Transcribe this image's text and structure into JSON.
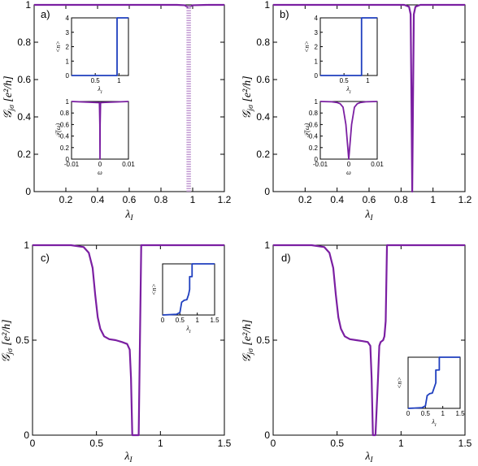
{
  "chart_data": [
    {
      "panel": "a)",
      "type": "line",
      "xlabel": "λI",
      "ylabel": "𝒢jσ [e²/h]",
      "xlim": [
        0,
        1.2
      ],
      "ylim": [
        0,
        1
      ],
      "xticks": [
        "0.2",
        "0.4",
        "0.6",
        "0.8",
        "1",
        "1.2"
      ],
      "yticks": [
        "0",
        "0.2",
        "0.4",
        "0.6",
        "0.8",
        "1"
      ],
      "series": [
        {
          "color": "#7b1fa2",
          "style": "solid",
          "x": [
            0,
            0.9,
            0.95,
            0.965,
            0.972
          ],
          "y": [
            1,
            1,
            0.998,
            0.99,
            0.985
          ]
        },
        {
          "color": "#7b1fa2",
          "style": "solid",
          "x": [
            0.978,
            1.0,
            1.1,
            1.2
          ],
          "y": [
            0.99,
            0.998,
            1,
            1
          ]
        },
        {
          "color": "#c39bd3",
          "style": "dotted",
          "x": [
            0.975,
            0.975
          ],
          "y": [
            0,
            1
          ]
        }
      ],
      "insets": [
        {
          "type": "line",
          "ylabel": "<n>",
          "xlabel": "λI",
          "xlim": [
            0,
            1.2
          ],
          "ylim": [
            0,
            4
          ],
          "xticks": [
            "0.5",
            "1"
          ],
          "yticks": [
            "0",
            "1",
            "2",
            "3",
            "4"
          ],
          "series": [
            {
              "color": "#1f3fbf",
              "x": [
                0,
                0.96,
                0.96,
                1.2
              ],
              "y": [
                0,
                0,
                4,
                4
              ]
            }
          ]
        },
        {
          "type": "line",
          "ylabel": "𝒯(ω)",
          "xlabel": "ω",
          "xlim": [
            -0.01,
            0.01
          ],
          "ylim": [
            0,
            1
          ],
          "xticks": [
            "-0.01",
            "0",
            "0.01"
          ],
          "yticks": [
            "0",
            "0.2",
            "0.4",
            "0.6",
            "0.8",
            "1"
          ],
          "series": [
            {
              "color": "#7b1fa2",
              "x": [
                -0.01,
                -0.0002,
                -5e-05,
                0,
                5e-05,
                0.0002,
                0.01
              ],
              "y": [
                1,
                0.98,
                0.6,
                0,
                0.6,
                0.98,
                1
              ]
            }
          ]
        }
      ]
    },
    {
      "panel": "b)",
      "type": "line",
      "xlabel": "λI",
      "ylabel": "𝒢jσ [e²/h]",
      "xlim": [
        0,
        1.2
      ],
      "ylim": [
        0,
        1
      ],
      "xticks": [
        "0.2",
        "0.4",
        "0.6",
        "0.8",
        "1",
        "1.2"
      ],
      "yticks": [
        "0",
        "0.2",
        "0.4",
        "0.6",
        "0.8",
        "1"
      ],
      "series": [
        {
          "color": "#7b1fa2",
          "style": "solid",
          "x": [
            0,
            0.82,
            0.85,
            0.86,
            0.865,
            0.87,
            0.875,
            0.88,
            0.89,
            0.92,
            1.0,
            1.2
          ],
          "y": [
            1,
            1,
            0.99,
            0.95,
            0.5,
            0,
            0.5,
            0.95,
            0.99,
            1,
            1,
            1
          ]
        }
      ],
      "insets": [
        {
          "type": "line",
          "ylabel": "<n>",
          "xlabel": "λI",
          "xlim": [
            0,
            1.2
          ],
          "ylim": [
            0,
            4
          ],
          "xticks": [
            "0.5",
            "1"
          ],
          "yticks": [
            "0",
            "1",
            "2",
            "3",
            "4"
          ],
          "series": [
            {
              "color": "#1f3fbf",
              "x": [
                0,
                0.87,
                0.87,
                1.2
              ],
              "y": [
                0,
                0,
                4,
                4
              ]
            }
          ]
        },
        {
          "type": "line",
          "ylabel": "𝒯(ω)",
          "xlabel": "ω",
          "xlim": [
            -0.01,
            0.01
          ],
          "ylim": [
            0,
            1
          ],
          "xticks": [
            "-0.01",
            "0",
            "0.01"
          ],
          "yticks": [
            "0",
            "0.2",
            "0.4",
            "0.6",
            "0.8",
            "1"
          ],
          "series": [
            {
              "color": "#7b1fa2",
              "x": [
                -0.01,
                -0.006,
                -0.004,
                -0.003,
                -0.002,
                -0.001,
                -0.0005,
                0,
                0.0005,
                0.001,
                0.002,
                0.003,
                0.004,
                0.006,
                0.01
              ],
              "y": [
                1,
                0.995,
                0.98,
                0.96,
                0.9,
                0.6,
                0.3,
                0,
                0.3,
                0.6,
                0.9,
                0.96,
                0.98,
                0.995,
                1
              ]
            }
          ]
        }
      ]
    },
    {
      "panel": "c)",
      "type": "line",
      "xlabel": "λI",
      "ylabel": "𝒢jσ [e²/h]",
      "xlim": [
        0,
        1.5
      ],
      "ylim": [
        0,
        1
      ],
      "xticks": [
        "0",
        "0.5",
        "1",
        "1.5"
      ],
      "yticks": [
        "0",
        "0.5",
        "1"
      ],
      "series": [
        {
          "color": "#7b1fa2",
          "style": "solid",
          "x": [
            0,
            0.3,
            0.4,
            0.44,
            0.47,
            0.49,
            0.51,
            0.53,
            0.56,
            0.6,
            0.65,
            0.7,
            0.74,
            0.76,
            0.77,
            0.78,
            0.79,
            0.83,
            0.84,
            0.85,
            1.0,
            1.5
          ],
          "y": [
            1,
            1,
            0.99,
            0.96,
            0.88,
            0.74,
            0.62,
            0.56,
            0.52,
            0.505,
            0.5,
            0.49,
            0.48,
            0.45,
            0.3,
            0,
            0,
            0,
            0.5,
            1,
            1,
            1
          ]
        }
      ],
      "insets": [
        {
          "type": "line",
          "ylabel": "<n>",
          "xlabel": "λI",
          "xlim": [
            0,
            1.5
          ],
          "ylim": [
            0,
            4
          ],
          "xticks": [
            "0",
            "0.5",
            "1",
            "1.5"
          ],
          "yticks": [],
          "series": [
            {
              "color": "#1f3fbf",
              "x": [
                0,
                0.4,
                0.5,
                0.55,
                0.6,
                0.62,
                0.7,
                0.75,
                0.78,
                0.78,
                0.85,
                0.85,
                1.5
              ],
              "y": [
                0,
                0.05,
                0.2,
                1,
                1.1,
                1.15,
                1.2,
                1.6,
                2,
                3,
                3,
                4,
                4
              ]
            }
          ]
        }
      ]
    },
    {
      "panel": "d)",
      "type": "line",
      "xlabel": "λI",
      "ylabel": "𝒢jσ [e²/h]",
      "xlim": [
        0,
        1.5
      ],
      "ylim": [
        0,
        1
      ],
      "xticks": [
        "0",
        "0.5",
        "1",
        "1.5"
      ],
      "yticks": [
        "0",
        "0.5",
        "1"
      ],
      "series": [
        {
          "color": "#7b1fa2",
          "style": "solid",
          "x": [
            0,
            0.3,
            0.4,
            0.44,
            0.47,
            0.49,
            0.51,
            0.53,
            0.56,
            0.6,
            0.65,
            0.7,
            0.74,
            0.76,
            0.77,
            0.78,
            0.8,
            0.82,
            0.83,
            0.84,
            0.86,
            0.87,
            0.88,
            0.89,
            1.0,
            1.5
          ],
          "y": [
            1,
            1,
            0.99,
            0.96,
            0.88,
            0.74,
            0.62,
            0.56,
            0.52,
            0.505,
            0.5,
            0.495,
            0.49,
            0.47,
            0.3,
            0,
            0,
            0.3,
            0.47,
            0.49,
            0.5,
            0.52,
            0.6,
            1,
            1,
            1
          ]
        }
      ],
      "insets": [
        {
          "type": "line",
          "ylabel": "<n>",
          "xlabel": "λI",
          "xlim": [
            0,
            1.5
          ],
          "ylim": [
            0,
            4
          ],
          "xticks": [
            "0",
            "0.5",
            "1",
            "1.5"
          ],
          "yticks": [],
          "series": [
            {
              "color": "#1f3fbf",
              "x": [
                0,
                0.4,
                0.5,
                0.55,
                0.6,
                0.62,
                0.7,
                0.75,
                0.8,
                0.8,
                0.9,
                0.9,
                1.5
              ],
              "y": [
                0,
                0.05,
                0.2,
                1,
                1.1,
                1.15,
                1.2,
                1.6,
                2,
                3,
                3,
                4,
                4
              ]
            }
          ]
        }
      ]
    }
  ]
}
